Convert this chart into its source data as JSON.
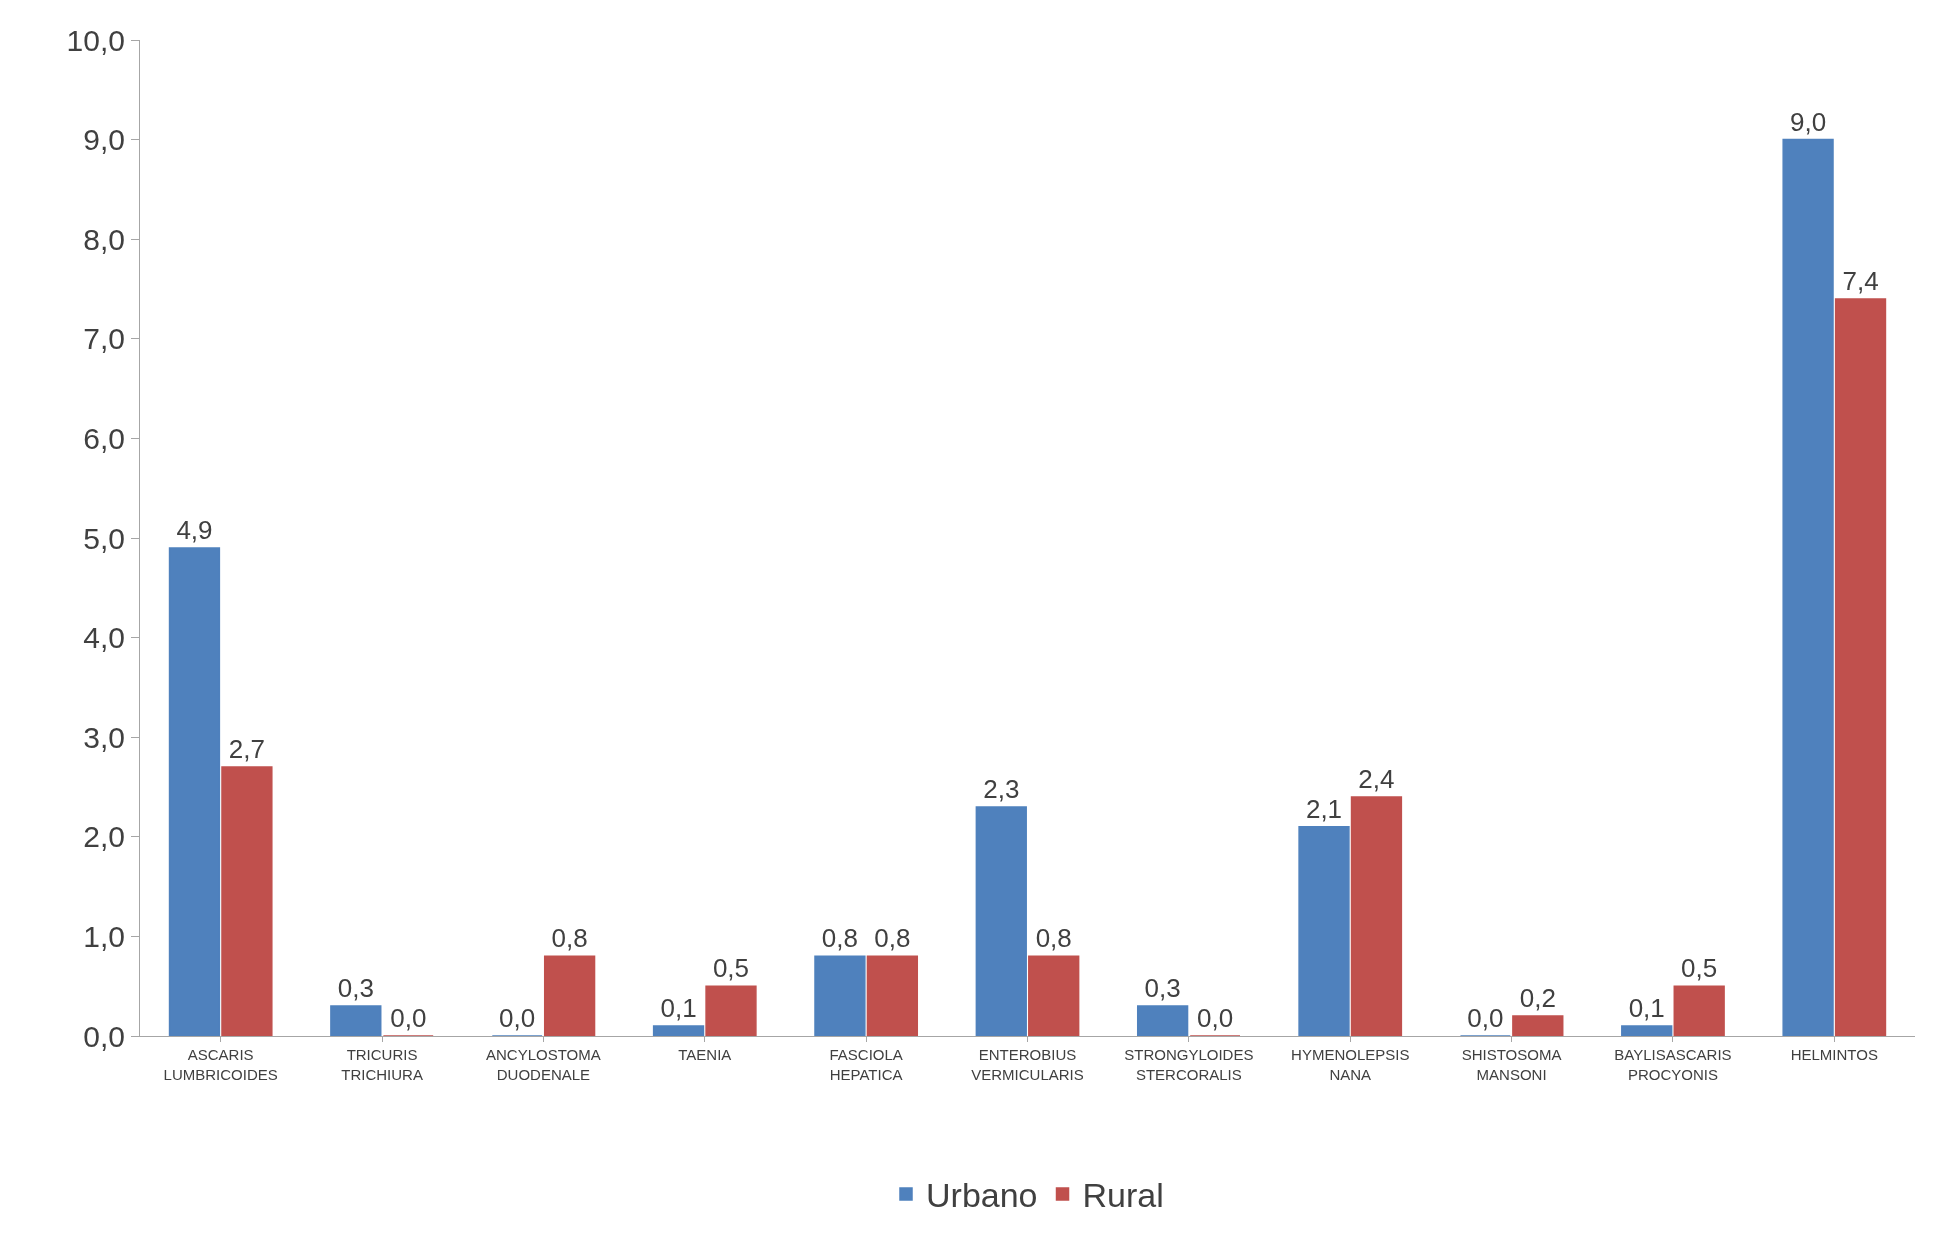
{
  "chart_data": {
    "type": "bar",
    "categories": [
      "ASCARIS LUMBRICOIDES",
      "TRICURIS TRICHIURA",
      "ANCYLOSTOMA DUODENALE",
      "TAENIA",
      "FASCIOLA HEPATICA",
      "ENTEROBIUS VERMICULARIS",
      "STRONGYLOIDES STERCORALIS",
      "HYMENOLEPSIS NANA",
      "SHISTOSOMA MANSONI",
      "BAYLISASCARIS PROCYONIS",
      "HELMINTOS"
    ],
    "series": [
      {
        "name": "Urbano",
        "color": "#4f81bd",
        "values": [
          4.9,
          0.3,
          0.0,
          0.1,
          0.8,
          2.3,
          0.3,
          2.1,
          0.0,
          0.1,
          9.0
        ],
        "value_labels": [
          "4,9",
          "0,3",
          "0,0",
          "0,1",
          "0,8",
          "2,3",
          "0,3",
          "2,1",
          "0,0",
          "0,1",
          "9,0"
        ]
      },
      {
        "name": "Rural",
        "color": "#c0504d",
        "values": [
          2.7,
          0.0,
          0.8,
          0.5,
          0.8,
          0.8,
          0.0,
          2.4,
          0.2,
          0.5,
          7.4
        ],
        "value_labels": [
          "2,7",
          "0,0",
          "0,8",
          "0,5",
          "0,8",
          "0,8",
          "0,0",
          "2,4",
          "0,2",
          "0,5",
          "7,4"
        ]
      }
    ],
    "ylim": [
      0,
      10
    ],
    "yticks": [
      {
        "value": 0,
        "label": "0,0"
      },
      {
        "value": 1,
        "label": "1,0"
      },
      {
        "value": 2,
        "label": "2,0"
      },
      {
        "value": 3,
        "label": "3,0"
      },
      {
        "value": 4,
        "label": "4,0"
      },
      {
        "value": 5,
        "label": "5,0"
      },
      {
        "value": 6,
        "label": "6,0"
      },
      {
        "value": 7,
        "label": "7,0"
      },
      {
        "value": 8,
        "label": "8,0"
      },
      {
        "value": 9,
        "label": "9,0"
      },
      {
        "value": 10,
        "label": "10,0"
      }
    ],
    "legend": "bottom"
  }
}
